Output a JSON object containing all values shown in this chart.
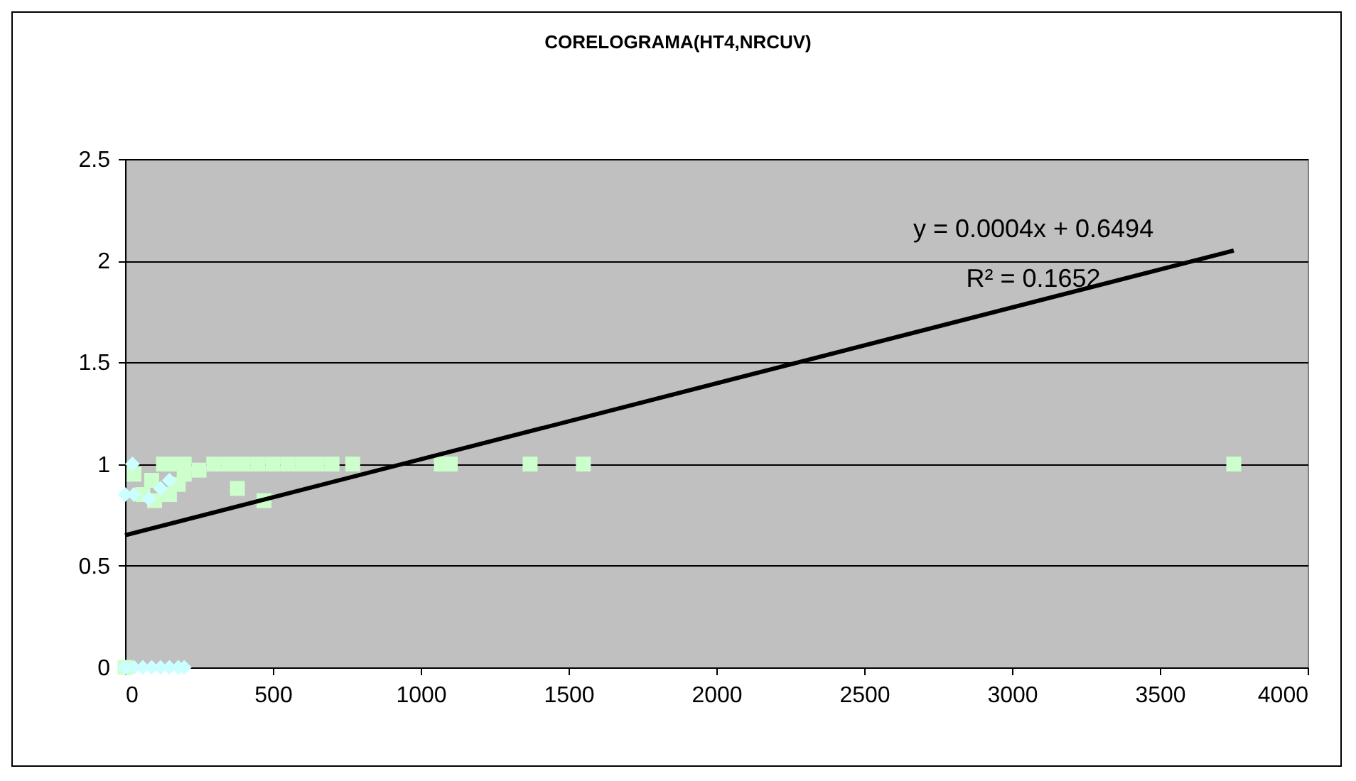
{
  "chart_data": {
    "type": "scatter",
    "title": "CORELOGRAMA(HT4,NRCUV)",
    "xlim": [
      0,
      4000
    ],
    "xticks": [
      0,
      500,
      1000,
      1500,
      2000,
      2500,
      3000,
      3500,
      4000
    ],
    "ylim": [
      0,
      2.5
    ],
    "yticks": [
      0,
      0.5,
      1,
      1.5,
      2,
      2.5
    ],
    "grid": "y",
    "annotations": [
      "y = 0.0004x + 0.6494",
      "R² = 0.1652"
    ],
    "series": [
      {
        "color": "#ccffcc",
        "marker": "square",
        "x": [
          0,
          130,
          160,
          200,
          300,
          350,
          400,
          450,
          500,
          550,
          600,
          650,
          700,
          770,
          1070,
          1100,
          1370,
          1550,
          3750,
          30,
          90,
          150,
          180,
          200,
          60,
          100,
          380,
          470,
          250
        ],
        "values": [
          0,
          1,
          1,
          1,
          1,
          1,
          1,
          1,
          1,
          1,
          1,
          1,
          1,
          1,
          1,
          1,
          1,
          1,
          1,
          0.95,
          0.92,
          0.85,
          0.9,
          0.95,
          0.85,
          0.82,
          0.88,
          0.82,
          0.97
        ]
      },
      {
        "color": "#ccffff",
        "marker": "diamond",
        "x": [
          25,
          0,
          30,
          80,
          120,
          150,
          0,
          30,
          60,
          90,
          120,
          150,
          180,
          200
        ],
        "values": [
          1,
          0.85,
          0.85,
          0.83,
          0.88,
          0.92,
          0,
          0,
          0,
          0,
          0,
          0,
          0,
          0
        ]
      },
      {
        "type": "line",
        "color": "#000000",
        "line_style": "solid",
        "marker": "none",
        "x": [
          0,
          3750
        ],
        "values": [
          0.65,
          2.05
        ]
      }
    ]
  }
}
